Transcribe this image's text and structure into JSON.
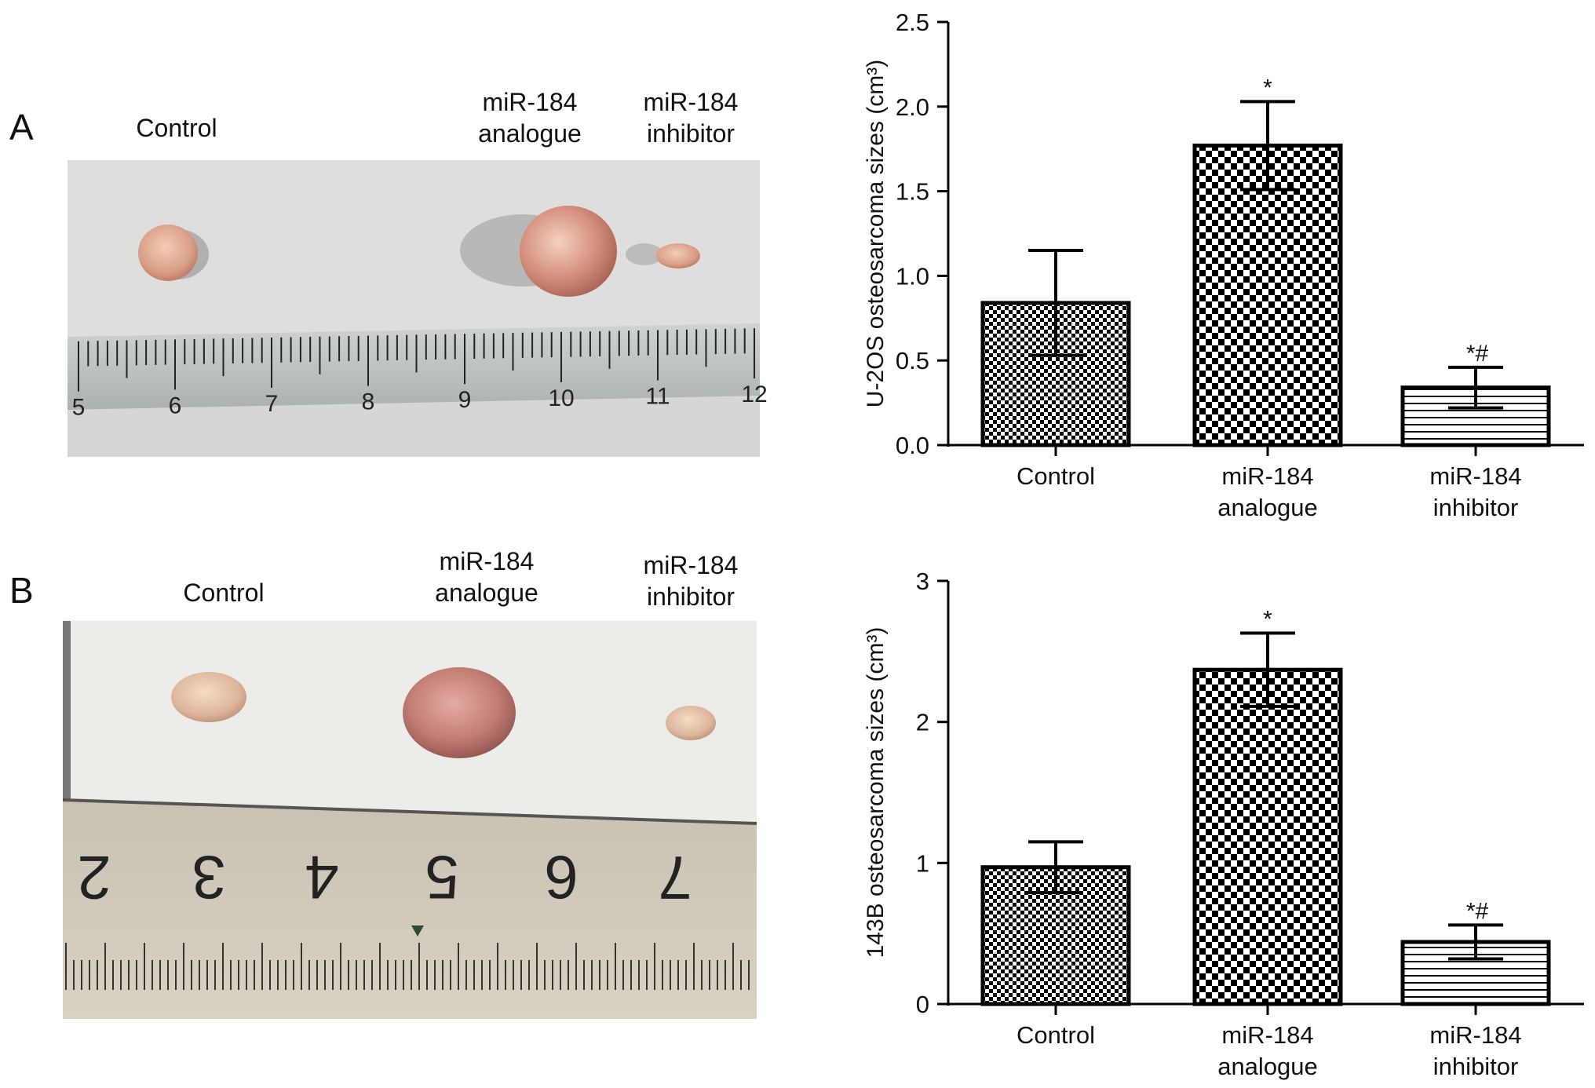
{
  "panel_a": {
    "letter": "A",
    "photo_labels": {
      "control": "Control",
      "analogue_l1": "miR-184",
      "analogue_l2": "analogue",
      "inhibitor_l1": "miR-184",
      "inhibitor_l2": "inhibitor"
    },
    "ruler_numbers": [
      "5",
      "6",
      "7",
      "8",
      "9",
      "10",
      "11",
      "12"
    ]
  },
  "panel_b": {
    "letter": "B",
    "photo_labels": {
      "control": "Control",
      "analogue_l1": "miR-184",
      "analogue_l2": "analogue",
      "inhibitor_l1": "miR-184",
      "inhibitor_l2": "inhibitor"
    },
    "ruler_numbers": [
      "2",
      "3",
      "4",
      "5",
      "6",
      "7"
    ]
  },
  "colors": {
    "bar_stroke": "#000000",
    "photo_bg_a": "#d7d7d3",
    "photo_bg_b": "#eeeeea",
    "tumor": "#d9a78f"
  },
  "chart_data": [
    {
      "type": "bar",
      "ylabel": "U-2OS osteosarcoma sizes (cm³)",
      "categories": [
        [
          "Control"
        ],
        [
          "miR-184",
          "analogue"
        ],
        [
          "miR-184",
          "inhibitor"
        ]
      ],
      "values": [
        0.84,
        1.77,
        0.34
      ],
      "errors": [
        0.31,
        0.26,
        0.12
      ],
      "annotations": [
        "",
        "*",
        "*#"
      ],
      "patterns": [
        "fine-checker",
        "checker",
        "hlines"
      ],
      "ylim": [
        0,
        2.5
      ],
      "yticks": [
        "0.0",
        "0.5",
        "1.0",
        "1.5",
        "2.0",
        "2.5"
      ]
    },
    {
      "type": "bar",
      "ylabel": "143B osteosarcoma sizes (cm³)",
      "categories": [
        [
          "Control"
        ],
        [
          "miR-184",
          "analogue"
        ],
        [
          "miR-184",
          "inhibitor"
        ]
      ],
      "values": [
        0.97,
        2.37,
        0.44
      ],
      "errors": [
        0.18,
        0.26,
        0.12
      ],
      "annotations": [
        "",
        "*",
        "*#"
      ],
      "patterns": [
        "fine-checker",
        "checker",
        "hlines"
      ],
      "ylim": [
        0,
        3
      ],
      "yticks": [
        "0",
        "1",
        "2",
        "3"
      ]
    }
  ]
}
